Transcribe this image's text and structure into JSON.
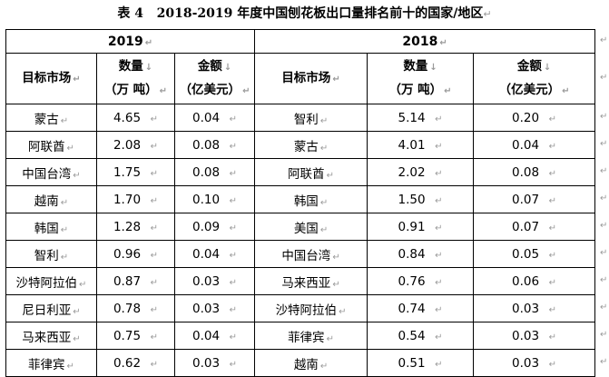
{
  "caption": {
    "label": "表 4",
    "title": "2018-2019 年度中国刨花板出口量排名前十的国家/地区"
  },
  "years": {
    "left": "2019",
    "right": "2018"
  },
  "headers": {
    "market": "目标市场",
    "quantity_line1": "数量",
    "quantity_line2": "（万 吨）",
    "amount_line1": "金额",
    "amount_line2": "（亿美元）"
  },
  "rows": [
    {
      "m19": "蒙古",
      "q19": "4.65",
      "a19": "0.04",
      "m18": "智利",
      "q18": "5.14",
      "a18": "0.20"
    },
    {
      "m19": "阿联酋",
      "q19": "2.08",
      "a19": "0.08",
      "m18": "蒙古",
      "q18": "4.01",
      "a18": "0.04"
    },
    {
      "m19": "中国台湾",
      "q19": "1.75",
      "a19": "0.08",
      "m18": "阿联酋",
      "q18": "2.02",
      "a18": "0.08"
    },
    {
      "m19": "越南",
      "q19": "1.70",
      "a19": "0.10",
      "m18": "韩国",
      "q18": "1.50",
      "a18": "0.07"
    },
    {
      "m19": "韩国",
      "q19": "1.28",
      "a19": "0.09",
      "m18": "美国",
      "q18": "0.91",
      "a18": "0.07"
    },
    {
      "m19": "智利",
      "q19": "0.96",
      "a19": "0.04",
      "m18": "中国台湾",
      "q18": "0.84",
      "a18": "0.05"
    },
    {
      "m19": "沙特阿拉伯",
      "q19": "0.87",
      "a19": "0.03",
      "m18": "马来西亚",
      "q18": "0.76",
      "a18": "0.06"
    },
    {
      "m19": "尼日利亚",
      "q19": "0.78",
      "a19": "0.03",
      "m18": "沙特阿拉伯",
      "q18": "0.74",
      "a18": "0.03"
    },
    {
      "m19": "马来西亚",
      "q19": "0.75",
      "a19": "0.04",
      "m18": "菲律宾",
      "q18": "0.54",
      "a18": "0.03"
    },
    {
      "m19": "菲律宾",
      "q19": "0.62",
      "a19": "0.03",
      "m18": "越南",
      "q18": "0.51",
      "a18": "0.03"
    }
  ]
}
